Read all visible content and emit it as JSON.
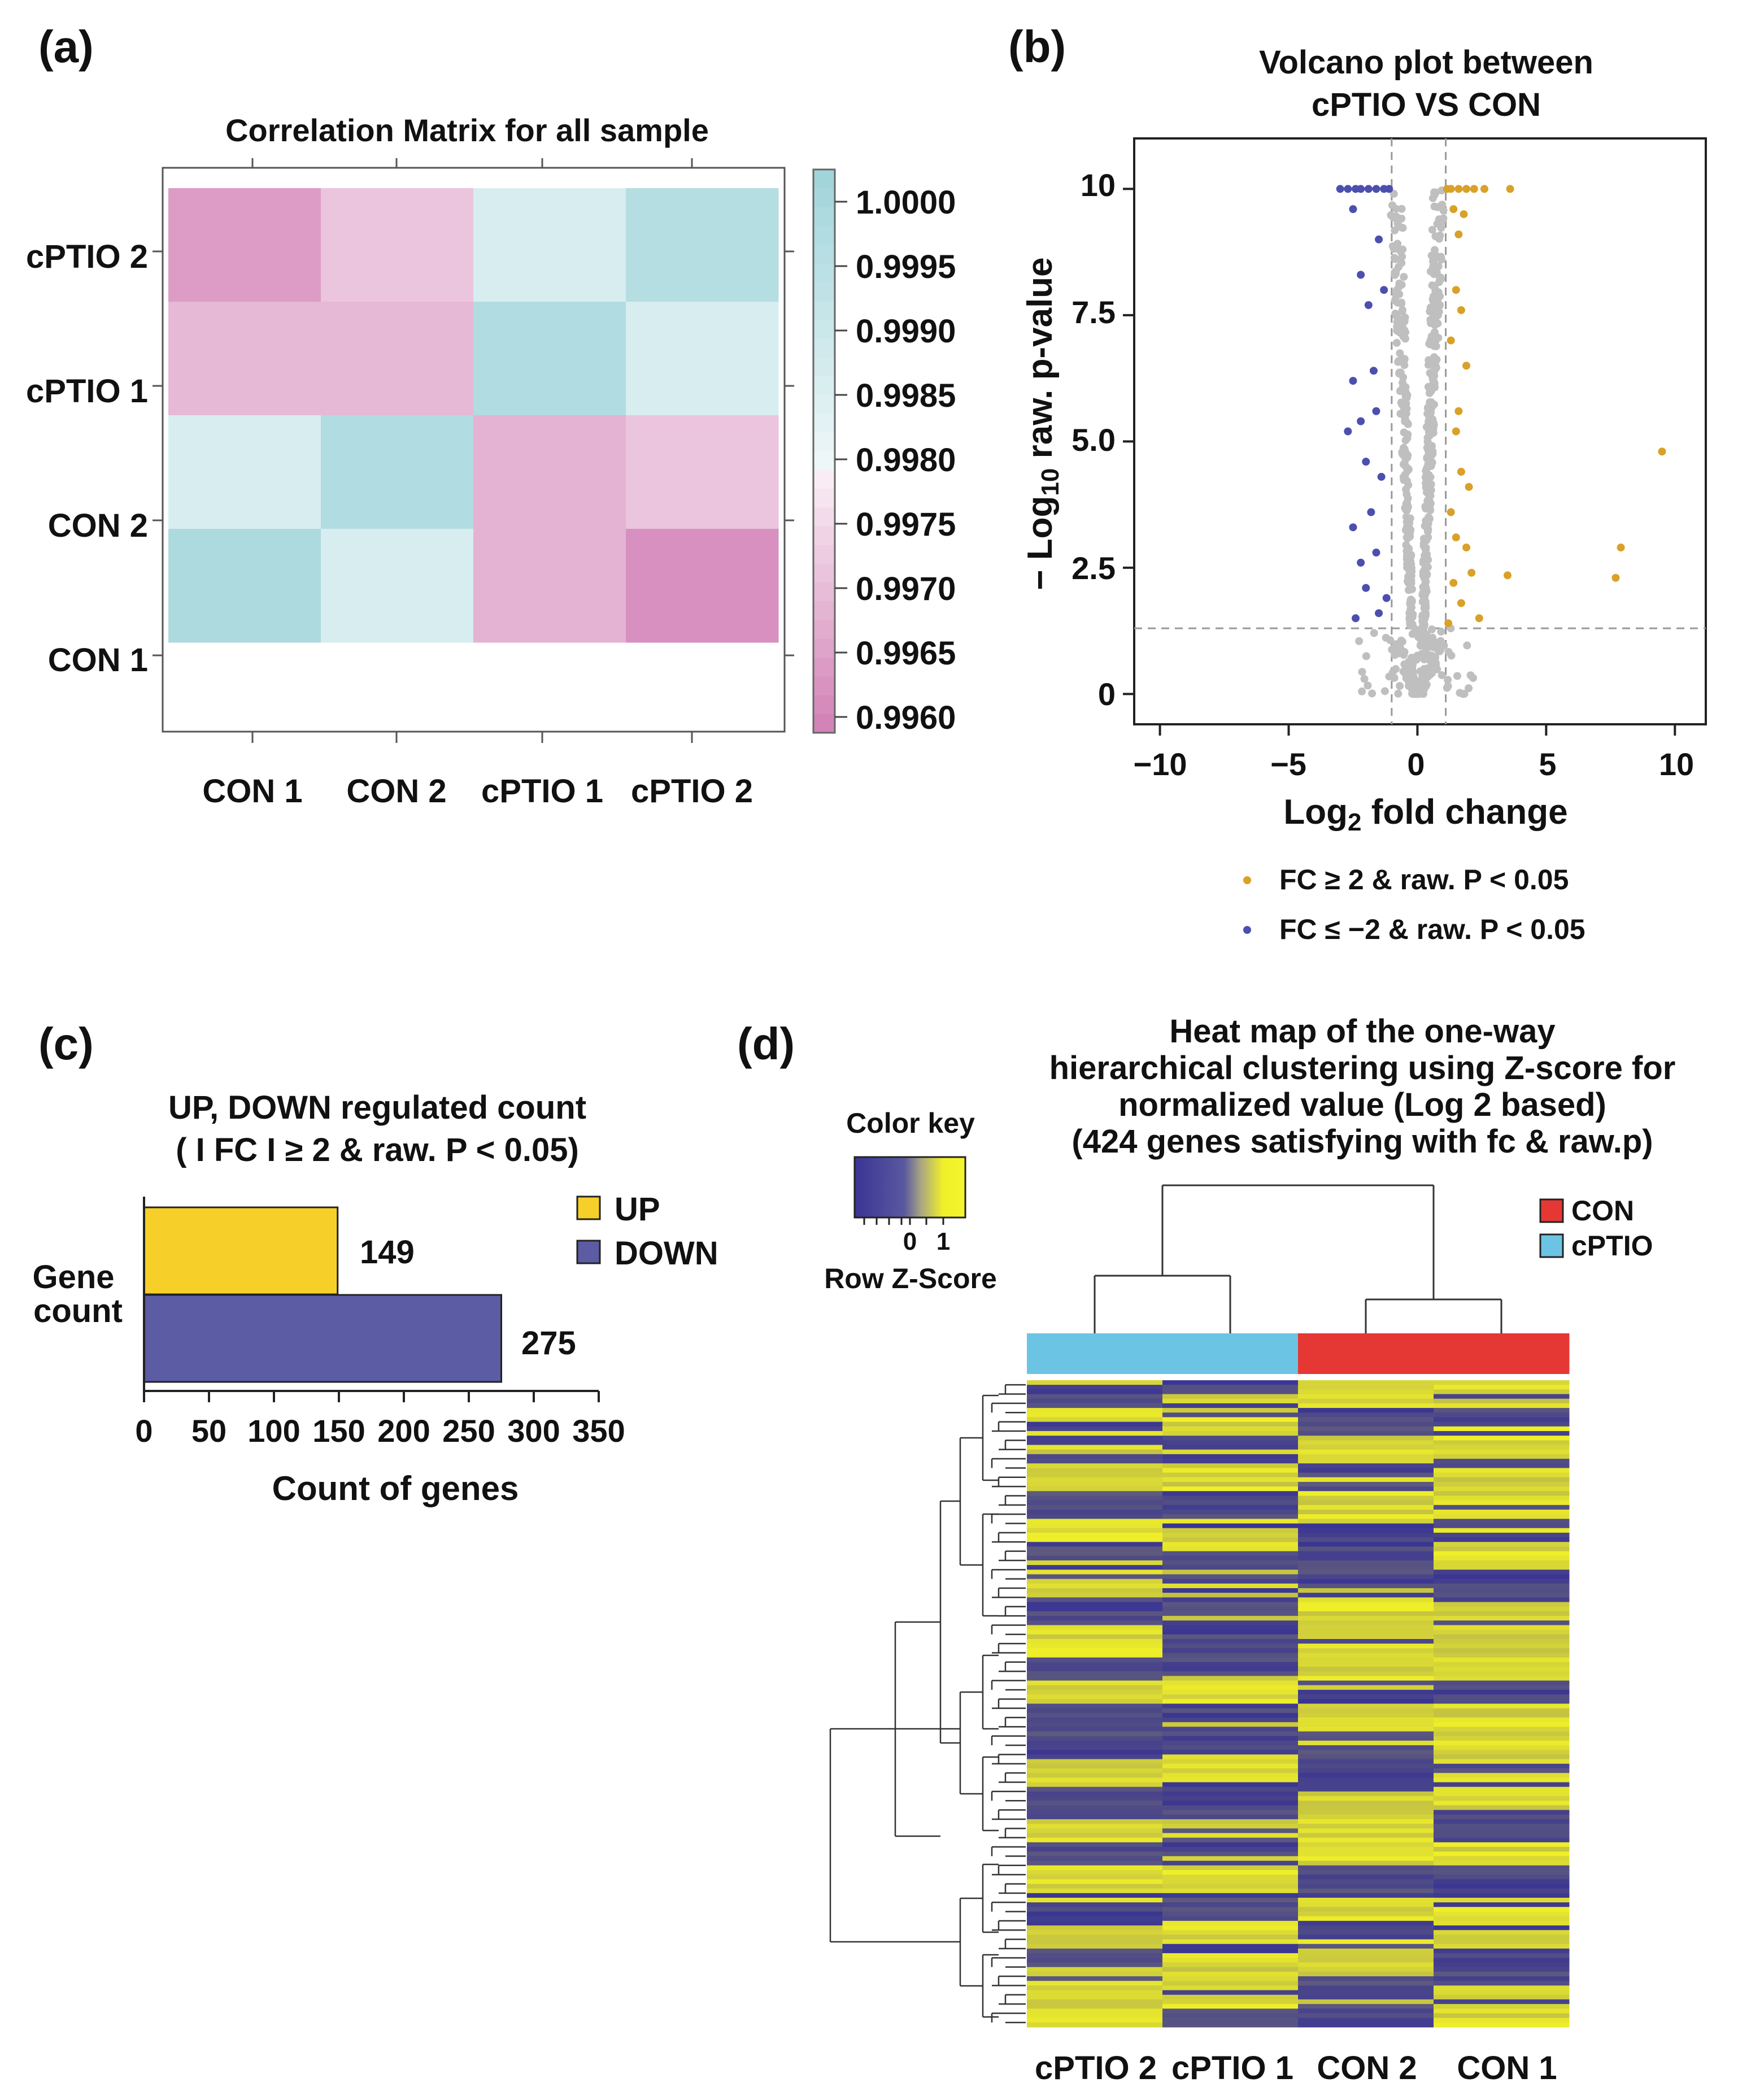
{
  "panel_labels": [
    "(a)",
    "(b)",
    "(c)",
    "(d)"
  ],
  "colors": {
    "pink_dark": "#d585b9",
    "pink_mid": "#e6aad1",
    "pink_light": "#f0c6e0",
    "cyan_light": "#dbeef1",
    "cyan": "#a8d9de",
    "cyan_mid": "#b2dde2",
    "up": "#d9a128",
    "down": "#4c4fae",
    "gray": "#bfbfbf",
    "bar_up": "#f7cf29",
    "bar_down": "#5b5ca3",
    "con": "#e53835",
    "cptio": "#6cc4e4",
    "hm_low": "#3a3593",
    "hm_high": "#f0f028"
  },
  "chart_data": [
    {
      "type": "heatmap",
      "title": "Correlation Matrix for all sample",
      "x_labels": [
        "CON 1",
        "CON 2",
        "cPTIO 1",
        "cPTIO 2"
      ],
      "y_labels": [
        "cPTIO 2",
        "cPTIO 1",
        "CON 2",
        "CON 1"
      ],
      "values": [
        [
          0.9965,
          0.9972,
          0.9986,
          0.9996
        ],
        [
          0.997,
          0.997,
          0.9997,
          0.9986
        ],
        [
          0.9986,
          0.9997,
          0.9969,
          0.9972
        ],
        [
          0.9998,
          0.9986,
          0.9969,
          0.9963
        ]
      ],
      "colorbar": {
        "ticks": [
          "1.0000",
          "0.9995",
          "0.9990",
          "0.9985",
          "0.9980",
          "0.9975",
          "0.9970",
          "0.9965",
          "0.9960"
        ],
        "range": [
          0.996,
          1.0002
        ]
      }
    },
    {
      "type": "scatter",
      "title_lines": [
        "Volcano plot between",
        "cPTIO VS CON"
      ],
      "xlabel_main": "Log",
      "xlabel_sub": "2",
      "xlabel_rest": " fold change",
      "ylabel_pre": "− Log",
      "ylabel_sub": "10",
      "ylabel_rest": " raw. p-value",
      "xlim": [
        -11,
        11.2
      ],
      "ylim": [
        -0.6,
        11
      ],
      "x_ticks": [
        "−10",
        "−5",
        "0",
        "5",
        "10"
      ],
      "x_tick_values": [
        -10,
        -5,
        0,
        5,
        10
      ],
      "y_ticks": [
        "0",
        "2.5",
        "5.0",
        "7.5",
        "10"
      ],
      "y_tick_values": [
        0,
        2.5,
        5.0,
        7.5,
        10
      ],
      "thresholds": {
        "x": [
          -1,
          1.1
        ],
        "y": 1.3
      },
      "legend": [
        "FC ≥ 2 & raw. P < 0.05",
        "FC ≤ −2 & raw. P < 0.05"
      ],
      "up_points": [
        [
          9.5,
          4.8
        ],
        [
          3.6,
          10
        ],
        [
          7.9,
          2.9
        ],
        [
          7.7,
          2.3
        ],
        [
          3.5,
          2.35
        ],
        [
          2.6,
          10
        ],
        [
          2.2,
          10
        ],
        [
          1.9,
          10
        ],
        [
          1.6,
          10
        ],
        [
          1.3,
          10
        ],
        [
          1.15,
          10
        ],
        [
          1.8,
          9.5
        ],
        [
          1.6,
          9.1
        ],
        [
          1.5,
          8.0
        ],
        [
          1.7,
          7.6
        ],
        [
          1.9,
          6.5
        ],
        [
          1.6,
          5.6
        ],
        [
          1.5,
          5.2
        ],
        [
          1.7,
          4.4
        ],
        [
          2.0,
          4.1
        ],
        [
          1.3,
          3.6
        ],
        [
          1.5,
          3.1
        ],
        [
          1.9,
          2.9
        ],
        [
          2.1,
          2.4
        ],
        [
          1.4,
          2.2
        ],
        [
          1.7,
          1.8
        ],
        [
          2.4,
          1.5
        ],
        [
          1.2,
          1.4
        ],
        [
          1.3,
          7.0
        ],
        [
          1.4,
          9.6
        ]
      ],
      "down_points": [
        [
          -3.0,
          10
        ],
        [
          -2.7,
          10
        ],
        [
          -2.4,
          10
        ],
        [
          -2.2,
          10
        ],
        [
          -1.9,
          10
        ],
        [
          -1.6,
          10
        ],
        [
          -1.3,
          10
        ],
        [
          -1.1,
          10
        ],
        [
          -2.5,
          9.6
        ],
        [
          -1.5,
          9.0
        ],
        [
          -2.2,
          8.3
        ],
        [
          -1.3,
          8.0
        ],
        [
          -1.9,
          7.7
        ],
        [
          -1.7,
          6.4
        ],
        [
          -2.5,
          6.2
        ],
        [
          -1.6,
          5.6
        ],
        [
          -2.2,
          5.4
        ],
        [
          -2.7,
          5.2
        ],
        [
          -2.0,
          4.6
        ],
        [
          -1.4,
          4.3
        ],
        [
          -1.8,
          3.6
        ],
        [
          -2.5,
          3.3
        ],
        [
          -1.6,
          2.8
        ],
        [
          -2.2,
          2.6
        ],
        [
          -2.0,
          2.1
        ],
        [
          -1.5,
          1.6
        ],
        [
          -2.4,
          1.5
        ],
        [
          -1.2,
          1.9
        ]
      ],
      "legend_colors": [
        "up",
        "down"
      ]
    },
    {
      "type": "bar",
      "orientation": "horizontal",
      "title_lines": [
        "UP, DOWN regulated count",
        "( I FC I ≥ 2 & raw. P < 0.05)"
      ],
      "categories": [
        "UP",
        "DOWN"
      ],
      "values": [
        149,
        275
      ],
      "ylabel_lines": [
        "Gene",
        "count"
      ],
      "xlabel": "Count of genes",
      "xlim": [
        0,
        350
      ],
      "x_ticks": [
        "0",
        "50",
        "100",
        "150",
        "200",
        "250",
        "300",
        "350"
      ],
      "legend": [
        "UP",
        "DOWN"
      ]
    },
    {
      "type": "heatmap",
      "title_lines": [
        "Heat map of the one-way",
        "hierarchical clustering using Z-score for",
        "normalized value (Log 2 based)",
        "(424 genes satisfying with fc & raw.p)"
      ],
      "columns": [
        "cPTIO 2",
        "cPTIO 1",
        "CON 2",
        "CON 1"
      ],
      "column_groups": [
        "cPTIO",
        "cPTIO",
        "CON",
        "CON"
      ],
      "legend": [
        "CON",
        "cPTIO"
      ],
      "color_key": {
        "title": "Color key",
        "subtitle": "Row Z-Score",
        "ticks": [
          "0",
          "1"
        ]
      },
      "n_genes": 424,
      "block_pattern": [
        [
          -1,
          -1,
          1,
          1
        ],
        [
          1,
          1,
          -1,
          -1
        ],
        [
          -1,
          -1,
          1,
          1
        ],
        [
          1,
          1,
          -1,
          1
        ],
        [
          -1,
          -1,
          1,
          1
        ],
        [
          1,
          1,
          -1,
          -1
        ],
        [
          -1,
          -1,
          -1,
          1
        ],
        [
          1,
          1,
          -1,
          -1
        ],
        [
          -1,
          -1,
          1,
          1
        ],
        [
          1,
          -1,
          1,
          1
        ],
        [
          -1,
          -1,
          1,
          1
        ],
        [
          1,
          1,
          -1,
          -1
        ],
        [
          -1,
          -1,
          1,
          1
        ],
        [
          -1,
          -1,
          -1,
          1
        ],
        [
          1,
          1,
          -1,
          -1
        ],
        [
          -1,
          -1,
          1,
          1
        ],
        [
          1,
          1,
          1,
          -1
        ],
        [
          -1,
          -1,
          1,
          1
        ],
        [
          1,
          1,
          -1,
          -1
        ],
        [
          -1,
          -1,
          1,
          1
        ],
        [
          1,
          1,
          -1,
          1
        ],
        [
          -1,
          1,
          1,
          -1
        ],
        [
          1,
          1,
          -1,
          -1
        ],
        [
          1,
          -1,
          -1,
          1
        ]
      ]
    }
  ]
}
